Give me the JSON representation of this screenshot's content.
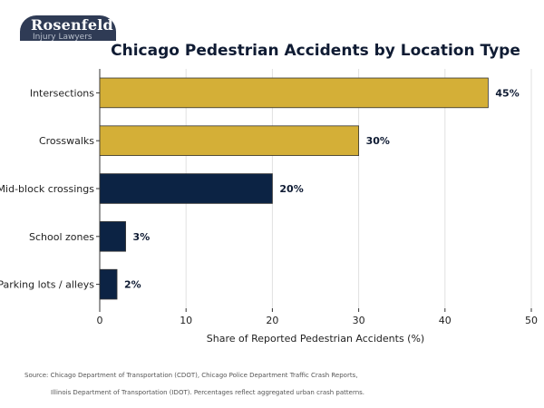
{
  "logo": {
    "name": "Rosenfeld",
    "subtitle": "Injury Lawyers",
    "background": "#2f3b55"
  },
  "colors": {
    "gold": "#d4af37",
    "navy": "#0c2344",
    "grid": "#e0e0e0",
    "axis": "#333333"
  },
  "chart_data": {
    "type": "bar",
    "orientation": "horizontal",
    "title": "Chicago Pedestrian Accidents by Location Type",
    "categories": [
      "Intersections",
      "Crosswalks",
      "Mid-block crossings",
      "School zones",
      "Parking lots / alleys"
    ],
    "values": [
      45,
      30,
      20,
      3,
      2
    ],
    "data_labels": [
      "45%",
      "30%",
      "20%",
      "3%",
      "2%"
    ],
    "bar_colors": [
      "gold",
      "gold",
      "navy",
      "navy",
      "navy"
    ],
    "xlabel": "Share of Reported Pedestrian Accidents (%)",
    "ylabel": "",
    "xlim": [
      0,
      50
    ],
    "xticks": [
      0,
      10,
      20,
      30,
      40,
      50
    ],
    "grid": "vertical",
    "legend": "none"
  },
  "footnote": {
    "line1": "Source: Chicago Department of Transportation (CDOT), Chicago Police Department Traffic Crash Reports,",
    "line2": "Illinois Department of Transportation (IDOT). Percentages reflect aggregated urban crash patterns."
  }
}
